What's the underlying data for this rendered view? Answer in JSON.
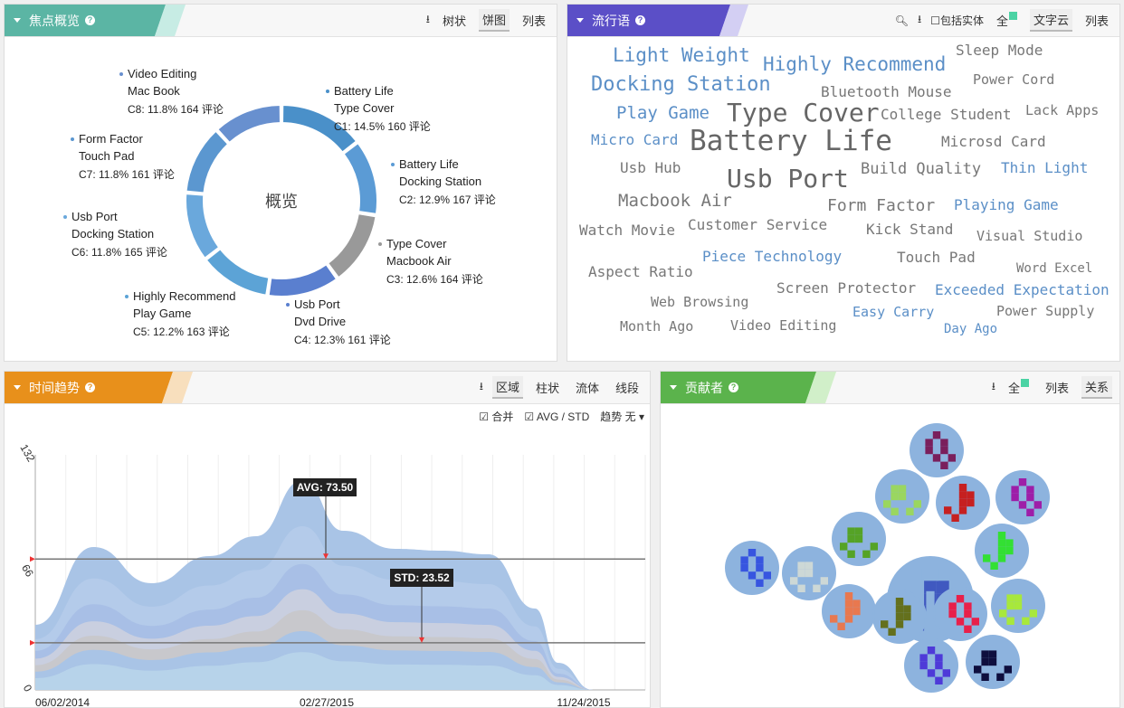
{
  "panel_focus": {
    "title": "焦点概览",
    "tools": [
      "树状",
      "饼图",
      "列表"
    ],
    "active_tool": "饼图",
    "center_label": "概览",
    "slices": [
      {
        "line1": "Battery Life",
        "line2": "Type Cover",
        "stat": "C1: 14.5% 160 评论",
        "pct": 14.5,
        "color": "#4a90c9"
      },
      {
        "line1": "Battery Life",
        "line2": "Docking Station",
        "stat": "C2: 12.9% 167 评论",
        "pct": 12.9,
        "color": "#5b9bd5"
      },
      {
        "line1": "Type Cover",
        "line2": "Macbook Air",
        "stat": "C3: 12.6% 164 评论",
        "pct": 12.6,
        "color": "#999999"
      },
      {
        "line1": "Usb Port",
        "line2": "Dvd Drive",
        "stat": "C4: 12.3% 161 评论",
        "pct": 12.3,
        "color": "#5a7fcf"
      },
      {
        "line1": "Highly Recommend",
        "line2": "Play Game",
        "stat": "C5: 12.2% 163 评论",
        "pct": 12.2,
        "color": "#5ca3d6"
      },
      {
        "line1": "Usb Port",
        "line2": "Docking Station",
        "stat": "C6: 11.8% 165 评论",
        "pct": 11.8,
        "color": "#6aa8dc"
      },
      {
        "line1": "Form Factor",
        "line2": "Touch Pad",
        "stat": "C7: 11.8% 161 评论",
        "pct": 11.8,
        "color": "#5b97d0"
      },
      {
        "line1": "Video Editing",
        "line2": "Mac Book",
        "stat": "C8: 11.8% 164 评论",
        "pct": 11.8,
        "color": "#6890cf"
      }
    ]
  },
  "panel_words": {
    "title": "流行语",
    "checkbox_label": "包括实体",
    "all_label": "全",
    "tools": [
      "文字云",
      "列表"
    ],
    "active_tool": "文字云",
    "words": [
      "Light Weight",
      "Highly Recommend",
      "Sleep Mode",
      "Docking Station",
      "Bluetooth Mouse",
      "Power Cord",
      "Play Game",
      "Type Cover",
      "College Student",
      "Lack Apps",
      "Micro Card",
      "Battery Life",
      "Microsd Card",
      "Usb Hub",
      "Build Quality",
      "Thin Light",
      "Usb Port",
      "Macbook Air",
      "Form Factor",
      "Playing Game",
      "Watch Movie",
      "Customer Service",
      "Kick Stand",
      "Visual Studio",
      "Piece Technology",
      "Touch Pad",
      "Aspect Ratio",
      "Word Excel",
      "Screen Protector",
      "Exceeded Expectation",
      "Web Browsing",
      "Easy Carry",
      "Power Supply",
      "Month Ago",
      "Video Editing",
      "Day Ago"
    ]
  },
  "panel_trend": {
    "title": "时间趋势",
    "tools": [
      "区域",
      "柱状",
      "流体",
      "线段"
    ],
    "active_tool": "区域",
    "option_merge": "合并",
    "option_avg": "AVG / STD",
    "trend_label": "趋势 无",
    "avg_label": "AVG: 73.50",
    "std_label": "STD: 23.52",
    "y_ticks": [
      "132",
      "66",
      "0"
    ],
    "x_ticks": [
      "06/02/2014",
      "02/27/2015",
      "11/24/2015"
    ]
  },
  "panel_contrib": {
    "title": "贡献者",
    "all_label": "全",
    "tools": [
      "列表",
      "关系"
    ],
    "active_tool": "关系"
  },
  "chart_data": {
    "type": "area",
    "x": [
      "06/02/2014",
      "02/27/2015",
      "11/24/2015"
    ],
    "ylim": [
      0,
      132
    ],
    "yticks": [
      0,
      66,
      132
    ],
    "avg": 73.5,
    "std": 23.52
  }
}
